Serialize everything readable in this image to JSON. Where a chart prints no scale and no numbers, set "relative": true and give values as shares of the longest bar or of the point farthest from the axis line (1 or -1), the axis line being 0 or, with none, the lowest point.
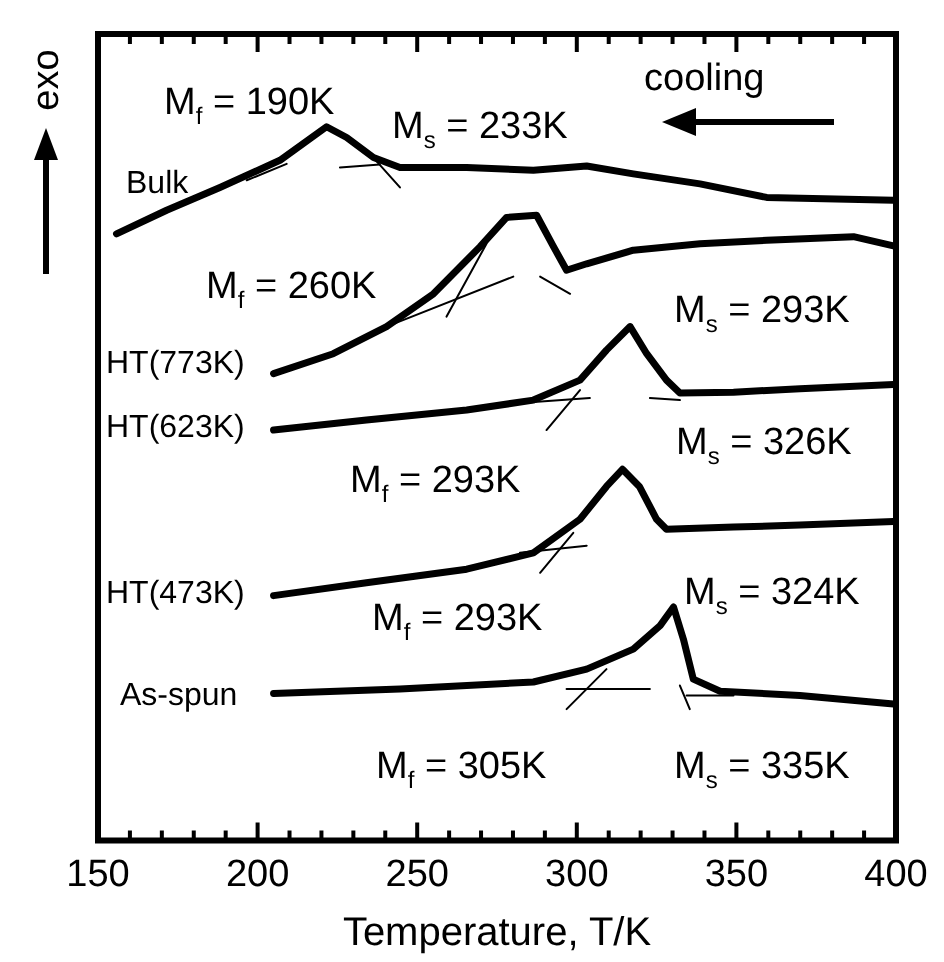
{
  "chart_data": {
    "type": "line",
    "xlabel": "Temperature, T/K",
    "ylabel": "exo",
    "relative": true,
    "legend": false,
    "marker": "none",
    "line_style": "solid",
    "xlim": [
      150,
      400
    ],
    "xticks": [
      150,
      {
        "value": 160,
        "label": null
      },
      {
        "value": 170,
        "label": null
      },
      {
        "value": 180,
        "label": null
      },
      {
        "value": 190,
        "label": null
      },
      200,
      {
        "value": 210,
        "label": null
      },
      {
        "value": 220,
        "label": null
      },
      {
        "value": 230,
        "label": null
      },
      {
        "value": 240,
        "label": null
      },
      250,
      {
        "value": 260,
        "label": null
      },
      {
        "value": 270,
        "label": null
      },
      {
        "value": 280,
        "label": null
      },
      {
        "value": 290,
        "label": null
      },
      300,
      {
        "value": 310,
        "label": null
      },
      {
        "value": 320,
        "label": null
      },
      {
        "value": 330,
        "label": null
      },
      {
        "value": 340,
        "label": null
      },
      350,
      {
        "value": 360,
        "label": null
      },
      {
        "value": 370,
        "label": null
      },
      {
        "value": 380,
        "label": null
      },
      {
        "value": 390,
        "label": null
      },
      400
    ],
    "series": [
      {
        "name": "Bulk",
        "color": "#000000",
        "x": [
          155.8,
          171.5,
          188.2,
          207,
          221.6,
          227.9,
          236.3,
          244.6,
          265.5,
          286.4,
          303.1,
          317.7,
          338.6,
          359.5,
          399.2
        ],
        "values": [
          0.85,
          0.883,
          0.915,
          0.953,
          1,
          0.985,
          0.957,
          0.943,
          0.943,
          0.939,
          0.945,
          0.934,
          0.92,
          0.901,
          0.897
        ]
      },
      {
        "name": "HT(773K)",
        "color": "#000000",
        "x": [
          205,
          223.7,
          240.4,
          255.1,
          269.7,
          278,
          287.4,
          292.7,
          296.8,
          303.1,
          317.7,
          338.6,
          359.5,
          386.7,
          399.2
        ],
        "values": [
          0.654,
          0.682,
          0.72,
          0.766,
          0.832,
          0.873,
          0.876,
          0.832,
          0.799,
          0.808,
          0.827,
          0.836,
          0.841,
          0.846,
          0.833
        ]
      },
      {
        "name": "HT(623K)",
        "color": "#000000",
        "x": [
          205,
          234.1,
          265.5,
          286.4,
          301,
          309.3,
          316.7,
          321.9,
          328.1,
          332.3,
          349.1,
          369.9,
          399.2
        ],
        "values": [
          0.575,
          0.589,
          0.603,
          0.617,
          0.645,
          0.687,
          0.72,
          0.682,
          0.645,
          0.627,
          0.628,
          0.633,
          0.639
        ]
      },
      {
        "name": "HT(473K)",
        "color": "#000000",
        "x": [
          205,
          234.1,
          265.5,
          286.4,
          301,
          309.3,
          314.3,
          319.6,
          325,
          328.1,
          349.1,
          369.9,
          399.2
        ],
        "values": [
          0.343,
          0.361,
          0.38,
          0.403,
          0.45,
          0.496,
          0.52,
          0.496,
          0.45,
          0.436,
          0.439,
          0.442,
          0.447
        ]
      },
      {
        "name": "As-spun",
        "color": "#000000",
        "x": [
          205,
          244.6,
          286.4,
          303.1,
          317.7,
          326.1,
          330.3,
          333.4,
          336.5,
          344.9,
          369.9,
          399.2
        ],
        "values": [
          0.206,
          0.212,
          0.222,
          0.24,
          0.268,
          0.301,
          0.327,
          0.282,
          0.226,
          0.209,
          0.203,
          0.191
        ]
      },
      {
        "color": "#000000",
        "x": [
          196.6,
          209.1
        ],
        "values": [
          0.925,
          0.948
        ]
      },
      {
        "color": "#000000",
        "x": [
          235.2,
          244.6
        ],
        "values": [
          0.962,
          0.915
        ]
      },
      {
        "color": "#000000",
        "x": [
          225.8,
          238.3
        ],
        "values": [
          0.943,
          0.947
        ]
      },
      {
        "color": "#000000",
        "x": [
          240.4,
          280.1
        ],
        "values": [
          0.72,
          0.79
        ]
      },
      {
        "color": "#000000",
        "x": [
          259.2,
          271.7
        ],
        "values": [
          0.734,
          0.836
        ]
      },
      {
        "color": "#000000",
        "x": [
          288.5,
          297.9
        ],
        "values": [
          0.79,
          0.766
        ]
      },
      {
        "color": "#000000",
        "x": [
          282.2,
          304.1
        ],
        "values": [
          0.613,
          0.62
        ]
      },
      {
        "color": "#000000",
        "x": [
          290.5,
          301
        ],
        "values": [
          0.575,
          0.631
        ]
      },
      {
        "color": "#000000",
        "x": [
          322.9,
          332.3
        ],
        "values": [
          0.62,
          0.617
        ]
      },
      {
        "color": "#000000",
        "x": [
          282.2,
          303.1
        ],
        "values": [
          0.403,
          0.413
        ]
      },
      {
        "color": "#000000",
        "x": [
          288.5,
          298.9
        ],
        "values": [
          0.375,
          0.431
        ]
      },
      {
        "color": "#000000",
        "x": [
          296.8,
          322.9
        ],
        "values": [
          0.212,
          0.212
        ]
      },
      {
        "color": "#000000",
        "x": [
          296.8,
          309.3
        ],
        "values": [
          0.184,
          0.24
        ]
      },
      {
        "color": "#000000",
        "x": [
          332.3,
          335.4
        ],
        "values": [
          0.217,
          0.184
        ]
      },
      {
        "color": "#000000",
        "x": [
          334.4,
          349.1
        ],
        "values": [
          0.203,
          0.203
        ]
      }
    ],
    "annotations": [
      "M$_{f}$ = 190K",
      "M$_{s}$ = 233K",
      "cooling",
      "M$_{f}$ = 260K",
      "M$_{s}$ = 293K",
      "M$_{f}$ = 293K",
      "M$_{s}$ = 326K",
      "M$_{f}$ = 293K",
      "M$_{s}$ = 324K",
      "M$_{f}$ = 305K",
      "M$_{s}$ = 335K"
    ]
  }
}
